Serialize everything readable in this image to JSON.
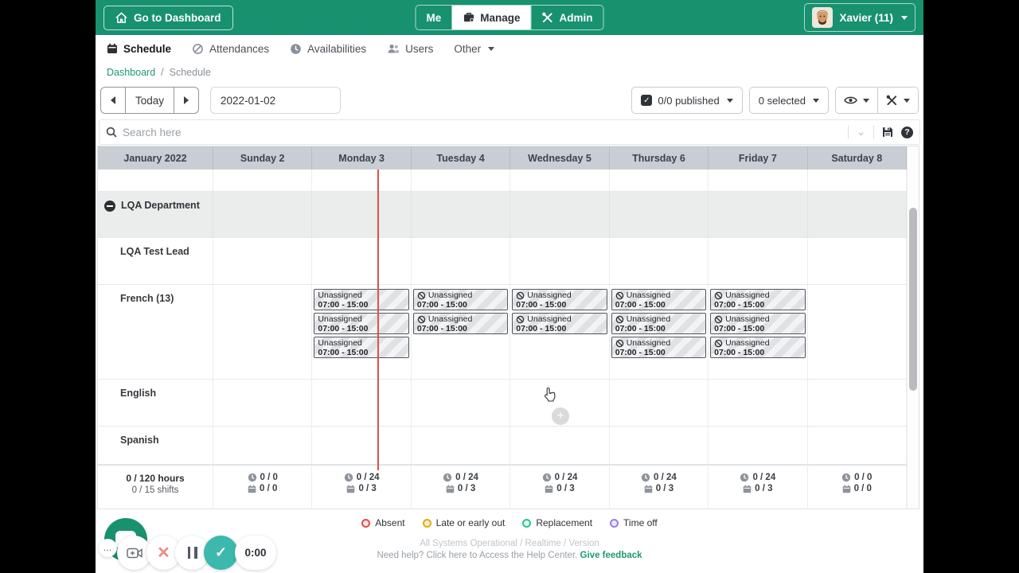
{
  "topbar": {
    "go_to_dashboard": "Go to Dashboard",
    "tabs": [
      {
        "label": "Me",
        "active": false
      },
      {
        "label": "Manage",
        "active": true
      },
      {
        "label": "Admin",
        "active": false
      }
    ],
    "user_label": "Xavier (11)"
  },
  "nav": {
    "items": [
      {
        "label": "Schedule",
        "active": true
      },
      {
        "label": "Attendances",
        "active": false
      },
      {
        "label": "Availabilities",
        "active": false
      },
      {
        "label": "Users",
        "active": false
      },
      {
        "label": "Other",
        "active": false
      }
    ]
  },
  "breadcrumb": {
    "home": "Dashboard",
    "separator": "/",
    "current": "Schedule"
  },
  "toolbar": {
    "today": "Today",
    "date_value": "2022-01-02",
    "published": "0/0 published",
    "selected": "0 selected"
  },
  "search": {
    "placeholder": "Search here"
  },
  "calendar": {
    "month_label": "January 2022",
    "days": [
      "Sunday 2",
      "Monday 3",
      "Tuesday 4",
      "Wednesday 5",
      "Thursday 6",
      "Friday 7",
      "Saturday 8"
    ],
    "department_label": "LQA Department",
    "row_labels": [
      "LQA Test Lead",
      "French (13)",
      "English",
      "Spanish"
    ],
    "shift_title": "Unassigned",
    "shift_time": "07:00 - 15:00",
    "french_shifts": [
      [],
      [
        {
          "icon": false
        },
        {
          "icon": false
        },
        {
          "icon": false
        }
      ],
      [
        {
          "icon": true
        },
        {
          "icon": true
        }
      ],
      [
        {
          "icon": true
        },
        {
          "icon": true
        }
      ],
      [
        {
          "icon": true
        },
        {
          "icon": true
        },
        {
          "icon": true
        }
      ],
      [
        {
          "icon": true
        },
        {
          "icon": true
        },
        {
          "icon": true
        }
      ],
      []
    ],
    "totals": {
      "hours": "0 / 120 hours",
      "shifts": "0 / 15 shifts",
      "days": [
        {
          "hours": "0 / 0",
          "shifts": "0 / 0"
        },
        {
          "hours": "0 / 24",
          "shifts": "0 / 3"
        },
        {
          "hours": "0 / 24",
          "shifts": "0 / 3"
        },
        {
          "hours": "0 / 24",
          "shifts": "0 / 3"
        },
        {
          "hours": "0 / 24",
          "shifts": "0 / 3"
        },
        {
          "hours": "0 / 24",
          "shifts": "0 / 3"
        },
        {
          "hours": "0 / 0",
          "shifts": "0 / 0"
        }
      ]
    }
  },
  "legend": {
    "items": [
      {
        "label": "Absent",
        "color": "#D9534F",
        "fill": "#F6E2E1"
      },
      {
        "label": "Late or early out",
        "color": "#E3AC07",
        "fill": "#FBF2D6"
      },
      {
        "label": "Replacement",
        "color": "#2FC493",
        "fill": "#DDF6EC"
      },
      {
        "label": "Time off",
        "color": "#9B7EDE",
        "fill": "#EEE8FA"
      }
    ]
  },
  "statusbar": {
    "status": "All Systems Operational / Realtime / Version",
    "help": "Need help? Click here to Access the Help Center.",
    "feedback": "Give feedback"
  },
  "recorder": {
    "timer": "0:00"
  }
}
